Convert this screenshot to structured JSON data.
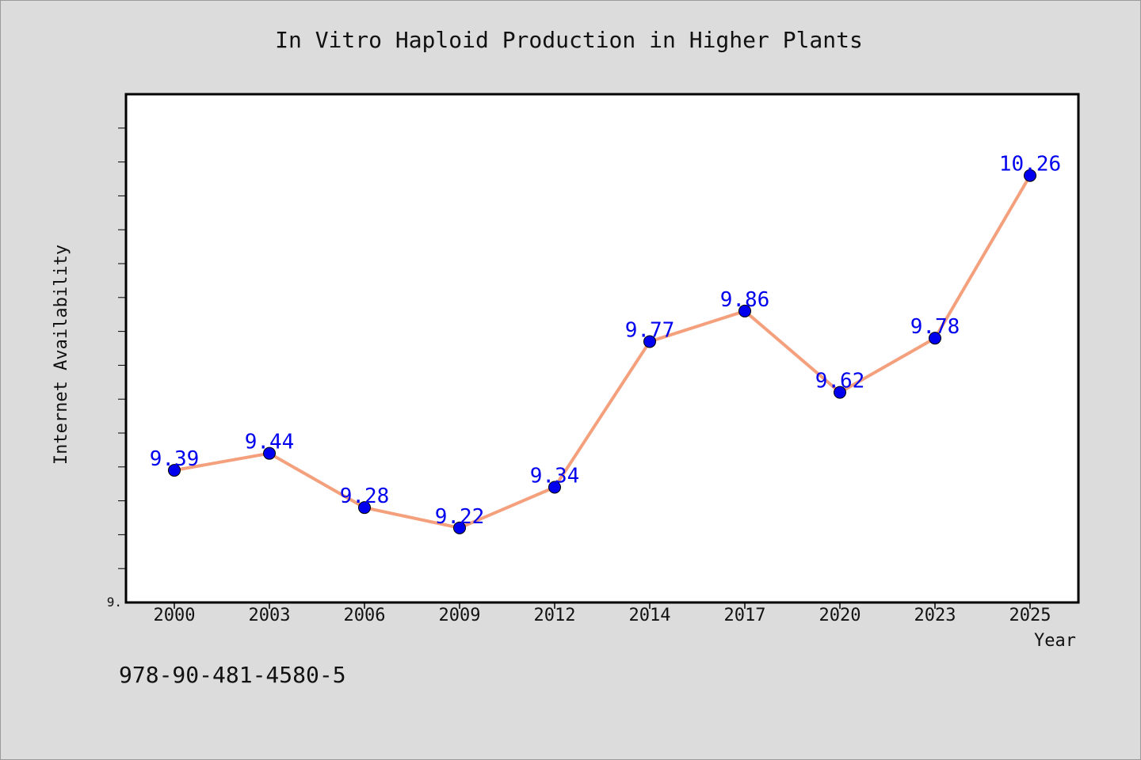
{
  "chart_data": {
    "type": "line",
    "title": "In Vitro Haploid Production in Higher Plants",
    "xlabel": "Year",
    "ylabel": "Internet Availability",
    "categories": [
      "2000",
      "2003",
      "2006",
      "2009",
      "2012",
      "2014",
      "2017",
      "2020",
      "2023",
      "2025"
    ],
    "series": [
      {
        "values": [
          9.39,
          9.44,
          9.28,
          9.22,
          9.34,
          9.77,
          9.86,
          9.62,
          9.78,
          10.26
        ],
        "data_labels": [
          "9.39",
          "9.44",
          "9.28",
          "9.22",
          "9.34",
          "9.77",
          "9.86",
          "9.62",
          "9.78",
          "10.26"
        ],
        "line_color": "#f4a07c",
        "marker_color": "#0000ee",
        "label_color": "#0000ee"
      }
    ],
    "ylim": [
      9.0,
      10.5
    ],
    "y_origin_label": "9.",
    "grid": false,
    "legend": "none"
  },
  "footer": {
    "isbn": "978-90-481-4580-5"
  },
  "colors": {
    "background": "#dcdcdc",
    "plot_background": "#ffffff",
    "axis": "#000000",
    "line": "#f4a07c",
    "marker": "#0000ee",
    "data_label": "#0000ee"
  }
}
